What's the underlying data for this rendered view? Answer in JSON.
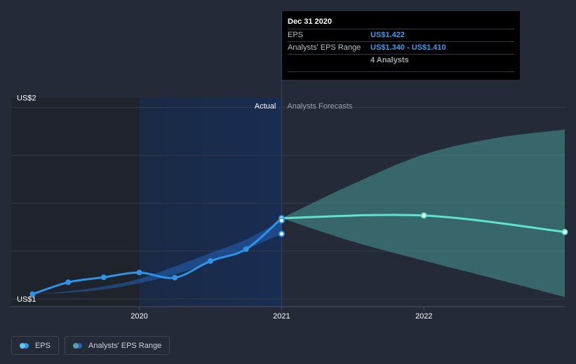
{
  "chart_data": {
    "type": "line",
    "x_range": [
      2019.1,
      2022.99
    ],
    "y_range": [
      0.96,
      2.05
    ],
    "y_tick_labels": [
      {
        "value": 2.0,
        "label": "US$2"
      },
      {
        "value": 1.0,
        "label": "US$1"
      }
    ],
    "y_gridlines": [
      1.0,
      1.25,
      1.5,
      1.75,
      2.0
    ],
    "x_ticks": [
      {
        "value": 2020,
        "label": "2020"
      },
      {
        "value": 2021,
        "label": "2021"
      },
      {
        "value": 2022,
        "label": "2022"
      }
    ],
    "divider_x": 2021,
    "shaded_start": 2020,
    "section_labels": {
      "actual": "Actual",
      "forecast": "Analysts Forecasts"
    },
    "series": [
      {
        "name": "EPS",
        "color": "#2f94e8",
        "points": [
          [
            2019.25,
            1.025
          ],
          [
            2019.5,
            1.087
          ],
          [
            2019.75,
            1.113
          ],
          [
            2020.0,
            1.138
          ],
          [
            2020.25,
            1.111
          ],
          [
            2020.5,
            1.198
          ],
          [
            2020.75,
            1.26
          ],
          [
            2021.0,
            1.422
          ]
        ]
      },
      {
        "name": "EPS forecast",
        "color": "#5ee3cf",
        "points": [
          [
            2021.0,
            1.422
          ],
          [
            2022.0,
            1.436
          ],
          [
            2022.99,
            1.35
          ]
        ]
      }
    ],
    "markers": [
      {
        "x": 2021.0,
        "y": 1.422,
        "color": "#2f94e8"
      },
      {
        "x": 2021.0,
        "y": 1.41,
        "color": "#2f94e8"
      },
      {
        "x": 2021.0,
        "y": 1.34,
        "color": "#2f94e8"
      },
      {
        "x": 2022.0,
        "y": 1.436,
        "color": "#5ee3cf"
      },
      {
        "x": 2022.99,
        "y": 1.35,
        "color": "#5ee3cf"
      }
    ],
    "historical_range": {
      "color": "#2563b8",
      "upper": [
        [
          2019.25,
          1.025
        ],
        [
          2019.5,
          1.04
        ],
        [
          2019.75,
          1.065
        ],
        [
          2020.0,
          1.105
        ],
        [
          2020.25,
          1.17
        ],
        [
          2020.5,
          1.24
        ],
        [
          2020.75,
          1.31
        ],
        [
          2021.0,
          1.41
        ]
      ],
      "lower": [
        [
          2019.25,
          1.025
        ],
        [
          2019.5,
          1.033
        ],
        [
          2019.75,
          1.05
        ],
        [
          2020.0,
          1.082
        ],
        [
          2020.25,
          1.128
        ],
        [
          2020.5,
          1.19
        ],
        [
          2020.75,
          1.26
        ],
        [
          2021.0,
          1.34
        ]
      ]
    },
    "forecast_range": {
      "color": "#3e7c7c",
      "upper": [
        [
          2021.0,
          1.422
        ],
        [
          2021.5,
          1.6
        ],
        [
          2022.0,
          1.755
        ],
        [
          2022.5,
          1.84
        ],
        [
          2022.99,
          1.885
        ]
      ],
      "lower": [
        [
          2021.0,
          1.422
        ],
        [
          2021.5,
          1.3
        ],
        [
          2022.0,
          1.2
        ],
        [
          2022.5,
          1.105
        ],
        [
          2022.99,
          1.01
        ]
      ]
    }
  },
  "tooltip": {
    "date": "Dec 31 2020",
    "rows": [
      {
        "label": "EPS",
        "value": "US$1.422",
        "sub": ""
      },
      {
        "label": "Analysts' EPS Range",
        "value": "US$1.340 - US$1.410",
        "sub": "4 Analysts"
      }
    ]
  },
  "legend": [
    {
      "label": "EPS",
      "colors": [
        "#5ec7f2",
        "#2f94e8"
      ]
    },
    {
      "label": "Analysts' EPS Range",
      "colors": [
        "#5aa0a8",
        "#2563b8"
      ]
    }
  ]
}
